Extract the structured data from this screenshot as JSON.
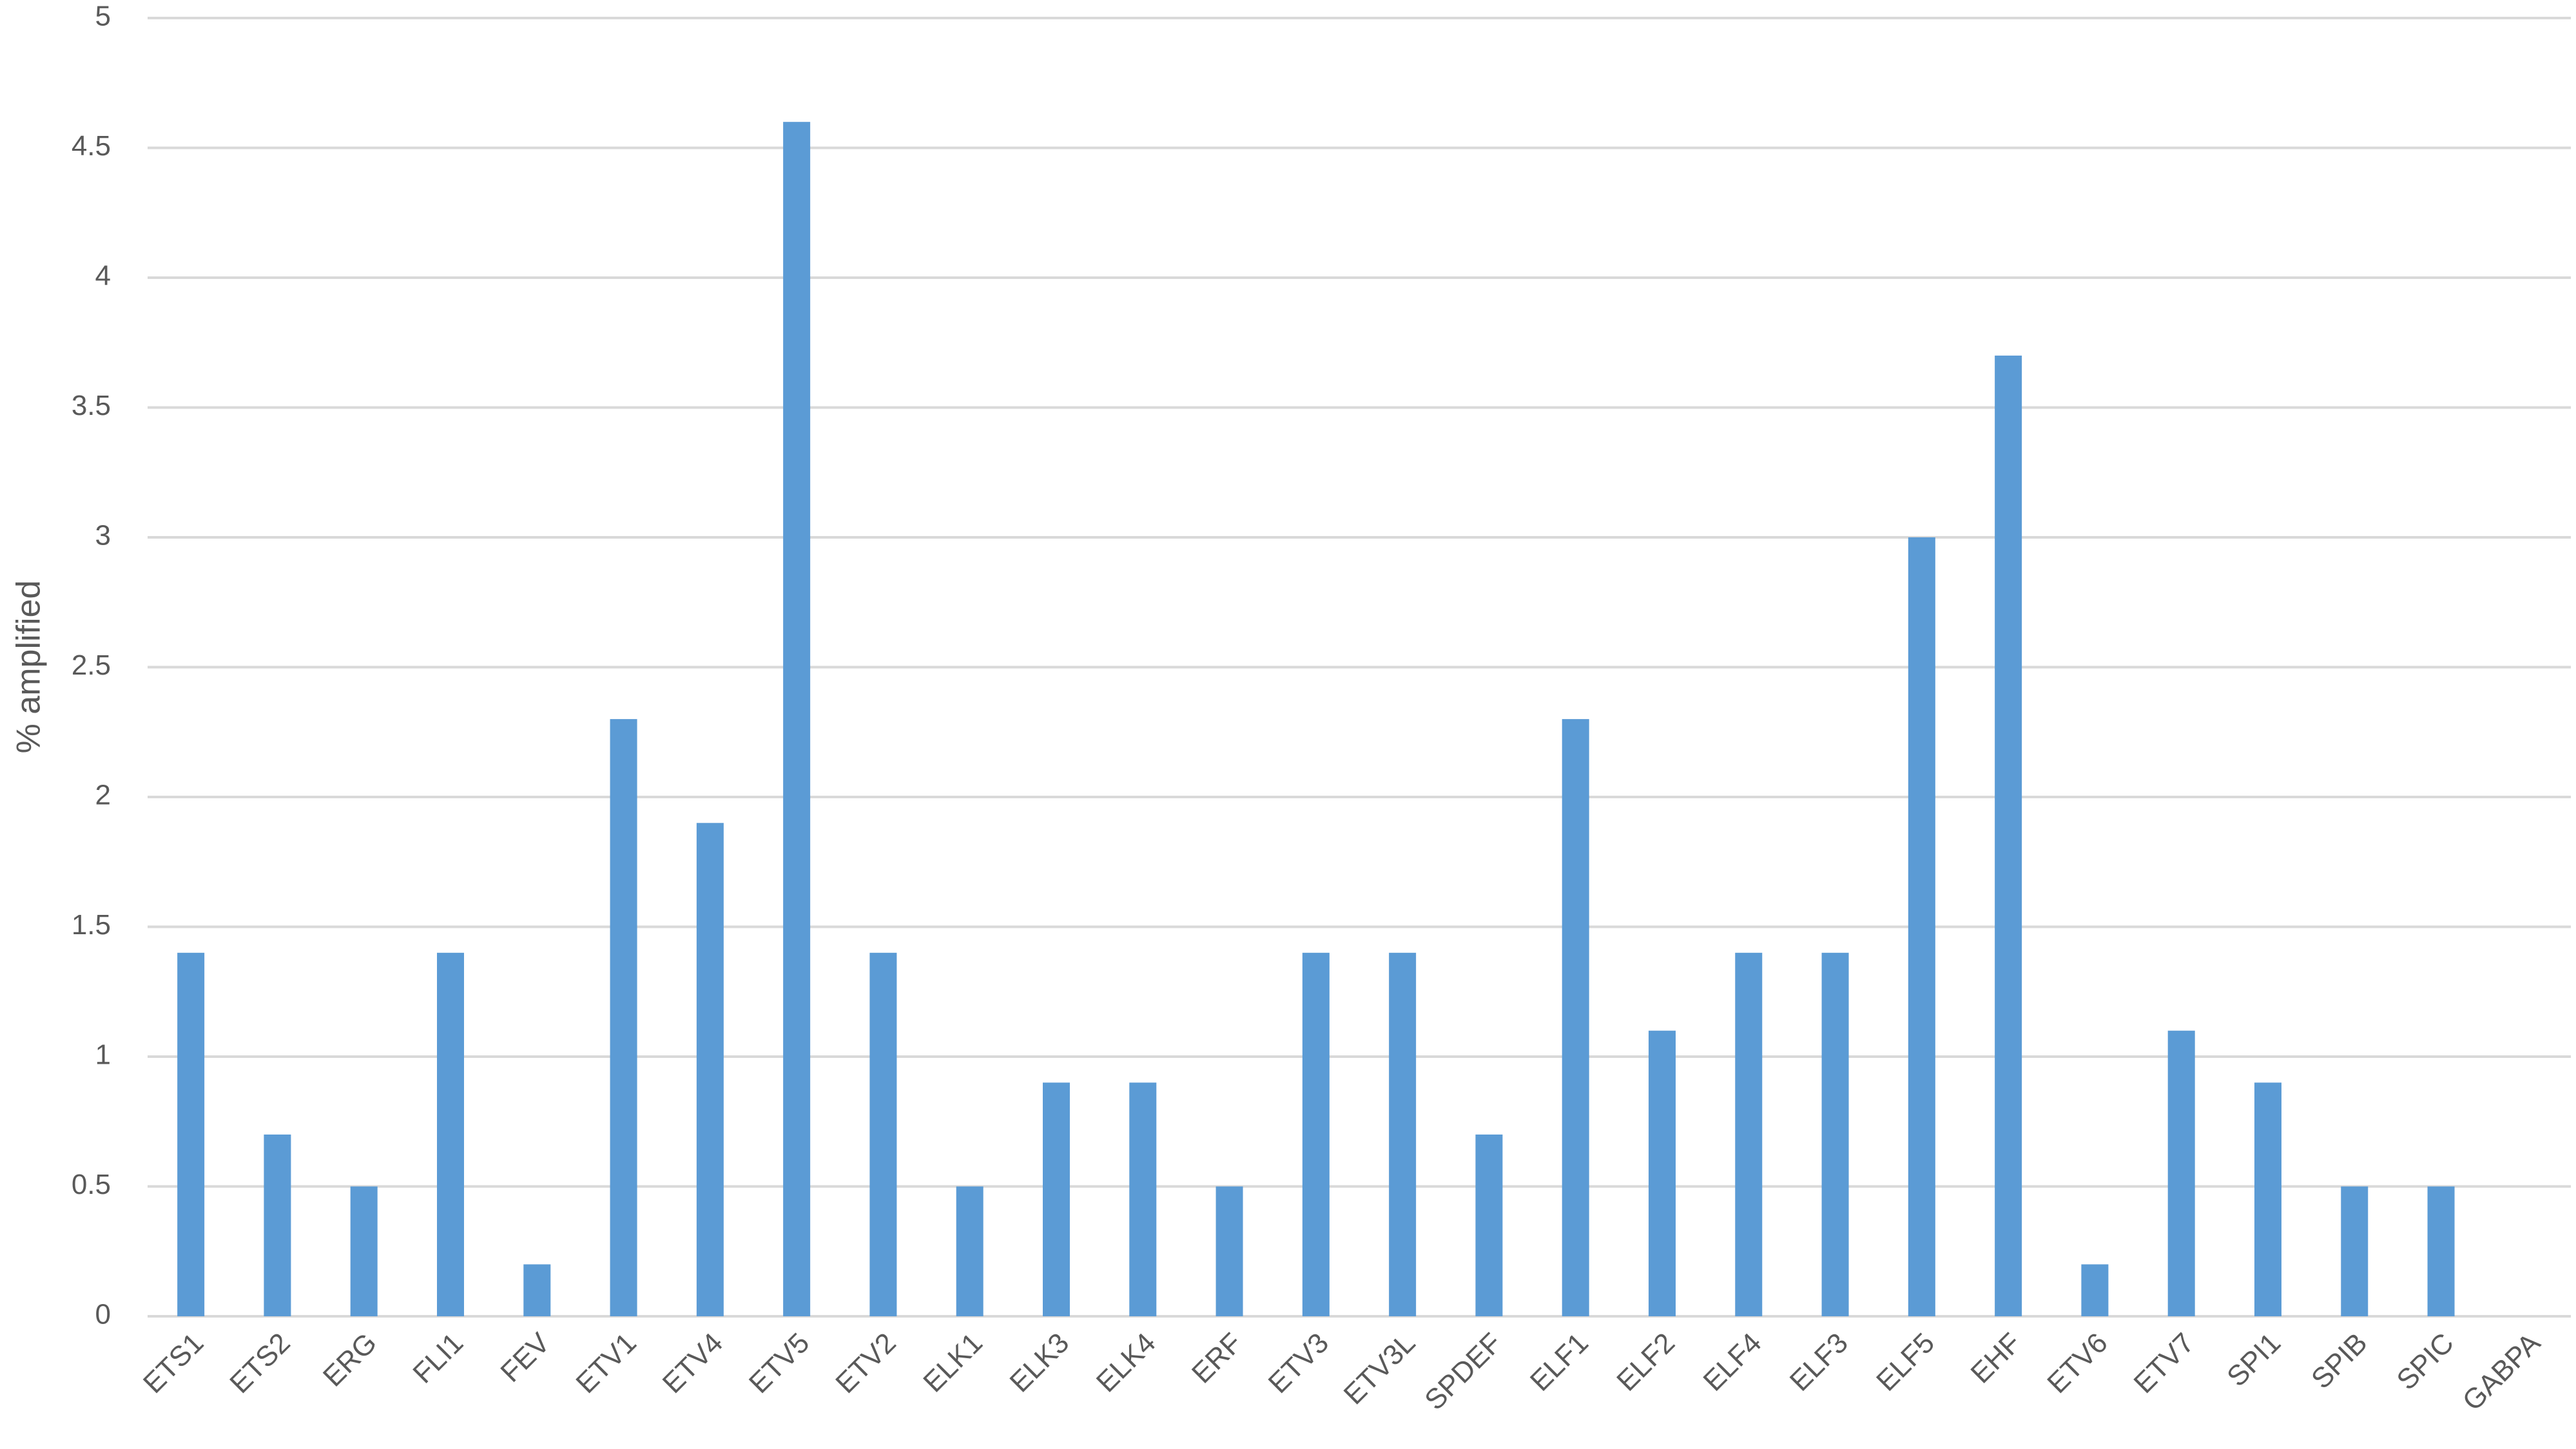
{
  "chart_data": {
    "type": "bar",
    "y_label": "% amplified",
    "categories": [
      "ETS1",
      "ETS2",
      "ERG",
      "FLI1",
      "FEV",
      "ETV1",
      "ETV4",
      "ETV5",
      "ETV2",
      "ELK1",
      "ELK3",
      "ELK4",
      "ERF",
      "ETV3",
      "ETV3L",
      "SPDEF",
      "ELF1",
      "ELF2",
      "ELF4",
      "ELF3",
      "ELF5",
      "EHF",
      "ETV6",
      "ETV7",
      "SPI1",
      "SPIB",
      "SPIC",
      "GABPA"
    ],
    "values": [
      1.4,
      0.7,
      0.5,
      1.4,
      0.2,
      2.3,
      1.9,
      4.6,
      1.4,
      0.5,
      0.9,
      0.9,
      0.5,
      1.4,
      1.4,
      0.7,
      2.3,
      1.1,
      1.4,
      1.4,
      3.0,
      3.7,
      0.2,
      1.1,
      0.9,
      0.5,
      0.5,
      0
    ],
    "color": "#5b9bd5",
    "ylim": [
      0,
      5
    ],
    "yticks": [
      0,
      0.5,
      1,
      1.5,
      2,
      2.5,
      3,
      3.5,
      4,
      4.5,
      5
    ],
    "grid": true
  }
}
